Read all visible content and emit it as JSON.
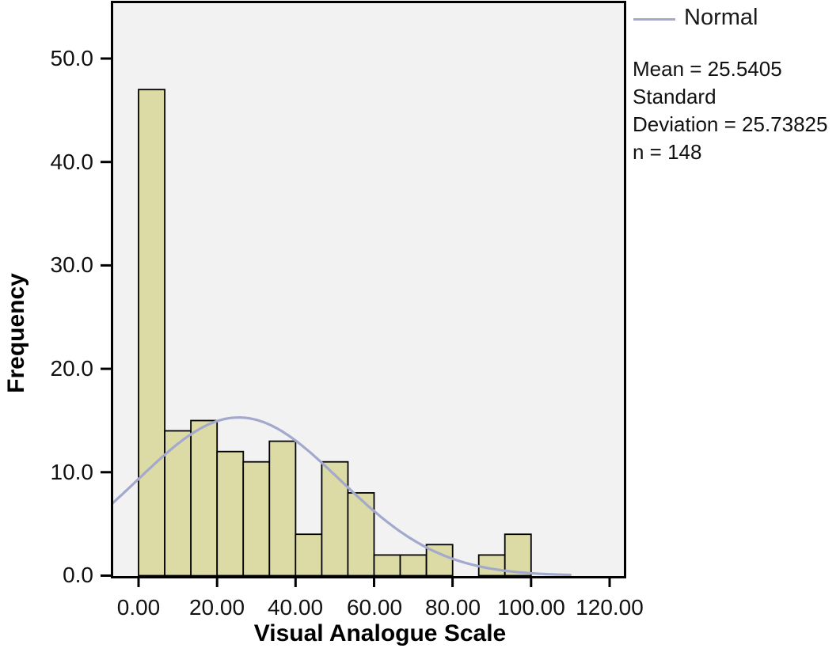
{
  "chart_data": {
    "type": "bar",
    "subtype": "histogram",
    "title": "",
    "xlabel": "Visual Analogue Scale",
    "ylabel": "Frequency",
    "legend": {
      "label": "Normal",
      "position": "top-right"
    },
    "stats_lines": [
      "Mean = 25.5405",
      "Standard",
      "Deviation = 25.73825",
      "n = 148"
    ],
    "bins": {
      "start": 0,
      "width": 6.6667,
      "frequencies": [
        47,
        14,
        15,
        12,
        11,
        13,
        4,
        11,
        8,
        2,
        2,
        3,
        0,
        2,
        4
      ]
    },
    "normal_curve": {
      "mean": 25.5405,
      "sd": 25.73825,
      "n": 148,
      "x_start": -6.5,
      "x_end": 110
    },
    "x_ticks": [
      0,
      20,
      40,
      60,
      80,
      100,
      120
    ],
    "x_tick_labels": [
      "0.00",
      "20.00",
      "40.00",
      "60.00",
      "80.00",
      "100.00",
      "120.00"
    ],
    "y_ticks": [
      0,
      10,
      20,
      30,
      40,
      50
    ],
    "y_tick_labels": [
      "0.0",
      "10.0",
      "20.0",
      "30.0",
      "40.0",
      "50.0"
    ],
    "x_range": [
      -6.5,
      123.6
    ],
    "y_range": [
      0,
      55.2
    ],
    "grid": false,
    "colors": {
      "bar_fill": "#dcdaa5",
      "bar_border": "#000000",
      "curve": "#a3a9cd",
      "plot_bg": "#f2f2f2",
      "frame": "#000000",
      "text": "#111111"
    }
  }
}
